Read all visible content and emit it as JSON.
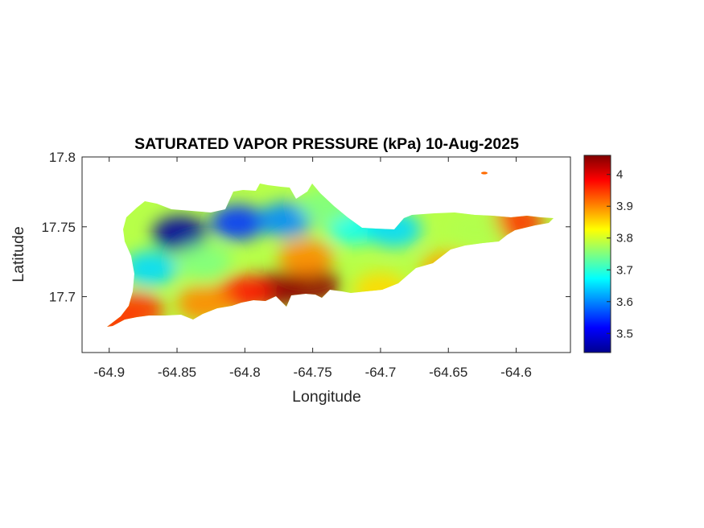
{
  "chart_data": {
    "type": "heatmap",
    "title": "SATURATED VAPOR PRESSURE (kPa) 10-Aug-2025",
    "xlabel": "Longitude",
    "ylabel": "Latitude",
    "xlim": [
      -64.92,
      -64.56
    ],
    "ylim": [
      17.66,
      17.8
    ],
    "xticks": [
      -64.9,
      -64.85,
      -64.8,
      -64.75,
      -64.7,
      -64.65,
      -64.6
    ],
    "xtick_labels": [
      "-64.9",
      "-64.85",
      "-64.8",
      "-64.75",
      "-64.7",
      "-64.65",
      "-64.6"
    ],
    "yticks": [
      17.7,
      17.75,
      17.8
    ],
    "ytick_labels": [
      "17.7",
      "17.75",
      "17.8"
    ],
    "colorbar": {
      "colormap": "jet",
      "range": [
        3.44,
        4.06
      ],
      "ticks": [
        3.5,
        3.6,
        3.7,
        3.8,
        3.9,
        4.0
      ],
      "tick_labels": [
        "3.5",
        "3.6",
        "3.7",
        "3.8",
        "3.9",
        "4"
      ]
    },
    "field_features": [
      {
        "lon": -64.848,
        "lat": 17.745,
        "value": 3.46
      },
      {
        "lon": -64.805,
        "lat": 17.753,
        "value": 3.55
      },
      {
        "lon": -64.77,
        "lat": 17.755,
        "value": 3.6
      },
      {
        "lon": -64.72,
        "lat": 17.75,
        "value": 3.68
      },
      {
        "lon": -64.69,
        "lat": 17.748,
        "value": 3.65
      },
      {
        "lon": -64.75,
        "lat": 17.708,
        "value": 4.05
      },
      {
        "lon": -64.775,
        "lat": 17.705,
        "value": 4.05
      },
      {
        "lon": -64.8,
        "lat": 17.703,
        "value": 3.97
      },
      {
        "lon": -64.755,
        "lat": 17.728,
        "value": 3.9
      },
      {
        "lon": -64.88,
        "lat": 17.69,
        "value": 3.95
      },
      {
        "lon": -64.9,
        "lat": 17.68,
        "value": 3.95
      },
      {
        "lon": -64.83,
        "lat": 17.695,
        "value": 3.9
      },
      {
        "lon": -64.7,
        "lat": 17.705,
        "value": 3.85
      },
      {
        "lon": -64.65,
        "lat": 17.72,
        "value": 3.88
      },
      {
        "lon": -64.6,
        "lat": 17.753,
        "value": 3.95
      },
      {
        "lon": -64.63,
        "lat": 17.748,
        "value": 3.78
      },
      {
        "lon": -64.62,
        "lat": 17.787,
        "value": 3.93
      },
      {
        "lon": -64.74,
        "lat": 17.765,
        "value": 3.75
      },
      {
        "lon": -64.83,
        "lat": 17.725,
        "value": 3.75
      },
      {
        "lon": -64.87,
        "lat": 17.72,
        "value": 3.65
      }
    ]
  }
}
